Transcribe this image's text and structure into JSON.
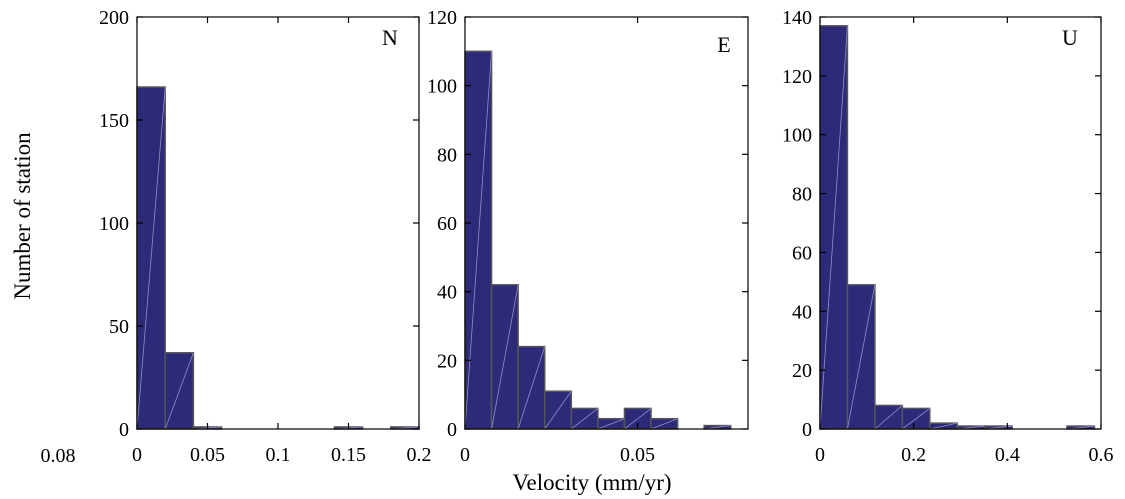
{
  "figure": {
    "ylabel": "Number of station",
    "xlabel": "Velocity (mm/yr)",
    "stray_tick": "0.08",
    "bar_color": "#2e2a7a",
    "edge_color": "#555555",
    "hatch_color": "#8f8fc6"
  },
  "chart_data": [
    {
      "type": "bar",
      "title": "N",
      "xlim": [
        0,
        0.2
      ],
      "ylim": [
        0,
        200
      ],
      "xticks": [
        0,
        0.05,
        0.1,
        0.15,
        0.2
      ],
      "xtick_labels": [
        "0",
        "0.05",
        "0.1",
        "0.15",
        "0.2"
      ],
      "yticks": [
        0,
        50,
        100,
        150,
        200
      ],
      "ytick_labels": [
        "0",
        "50",
        "100",
        "150",
        "200"
      ],
      "bin_edges": [
        0,
        0.02,
        0.04,
        0.06,
        0.08,
        0.1,
        0.12,
        0.14,
        0.16,
        0.18,
        0.2
      ],
      "values": [
        166,
        37,
        1,
        0,
        0,
        0,
        0,
        1,
        0,
        1
      ]
    },
    {
      "type": "bar",
      "title": "E",
      "xlim": [
        0,
        0.082
      ],
      "ylim": [
        0,
        120
      ],
      "xticks": [
        0,
        0.05
      ],
      "xtick_labels": [
        "0",
        "0.05"
      ],
      "yticks": [
        0,
        20,
        40,
        60,
        80,
        100,
        120
      ],
      "ytick_labels": [
        "0",
        "20",
        "40",
        "60",
        "80",
        "100",
        "120"
      ],
      "bin_edges": [
        0,
        0.0077,
        0.0154,
        0.0231,
        0.0308,
        0.0385,
        0.0462,
        0.0539,
        0.0616,
        0.0693,
        0.077
      ],
      "values": [
        110,
        42,
        24,
        11,
        6,
        3,
        6,
        3,
        0,
        1
      ]
    },
    {
      "type": "bar",
      "title": "U",
      "xlim": [
        0,
        0.6
      ],
      "ylim": [
        0,
        140
      ],
      "xticks": [
        0,
        0.2,
        0.4,
        0.6
      ],
      "xtick_labels": [
        "0",
        "0.2",
        "0.4",
        "0.6"
      ],
      "yticks": [
        0,
        20,
        40,
        60,
        80,
        100,
        120,
        140
      ],
      "ytick_labels": [
        "0",
        "20",
        "40",
        "60",
        "80",
        "100",
        "120",
        "140"
      ],
      "bin_edges": [
        0,
        0.0586,
        0.1172,
        0.1758,
        0.2344,
        0.293,
        0.3516,
        0.4102,
        0.4688,
        0.5274,
        0.586
      ],
      "values": [
        137,
        49,
        8,
        7,
        2,
        1,
        1,
        0,
        0,
        1
      ]
    }
  ]
}
